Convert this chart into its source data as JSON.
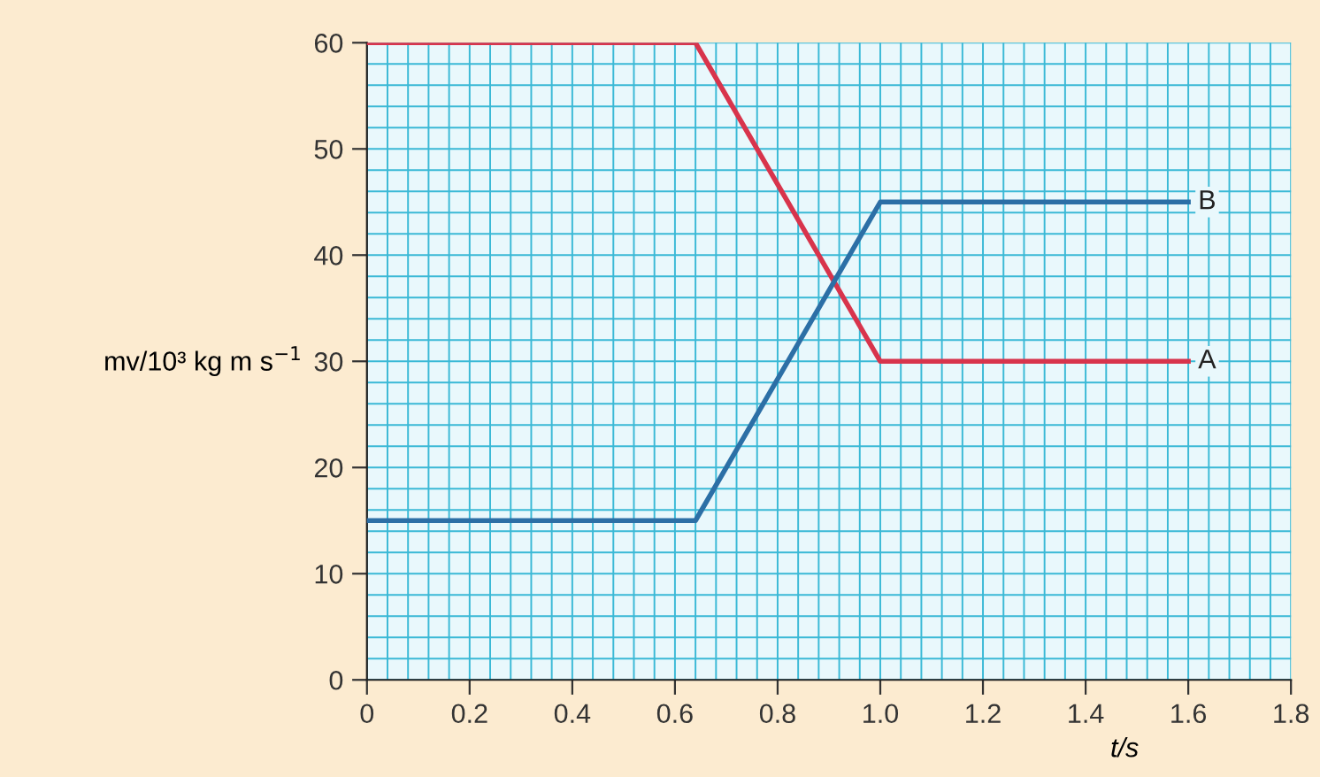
{
  "chart_data": {
    "type": "line",
    "x": [
      0,
      0.64,
      1.0,
      1.6
    ],
    "series": [
      {
        "name": "A",
        "color": "#d8344c",
        "values": [
          60,
          60,
          30,
          30
        ]
      },
      {
        "name": "B",
        "color": "#2c6fa6",
        "values": [
          15,
          15,
          45,
          45
        ]
      }
    ],
    "xlabel": "t/s",
    "ylabel": "mv/10³ kg m s$^{−1}$",
    "xlim": [
      0,
      1.8
    ],
    "ylim": [
      0,
      60
    ],
    "xticks": [
      0,
      0.2,
      0.4,
      0.6,
      0.8,
      {
        "value": 1.0,
        "label": "1.0"
      },
      1.2,
      1.4,
      1.6,
      1.8
    ],
    "yticks": [
      0,
      10,
      20,
      30,
      40,
      50,
      60
    ],
    "grid": true,
    "legend": false,
    "marker": "none",
    "line_style": "solid"
  }
}
